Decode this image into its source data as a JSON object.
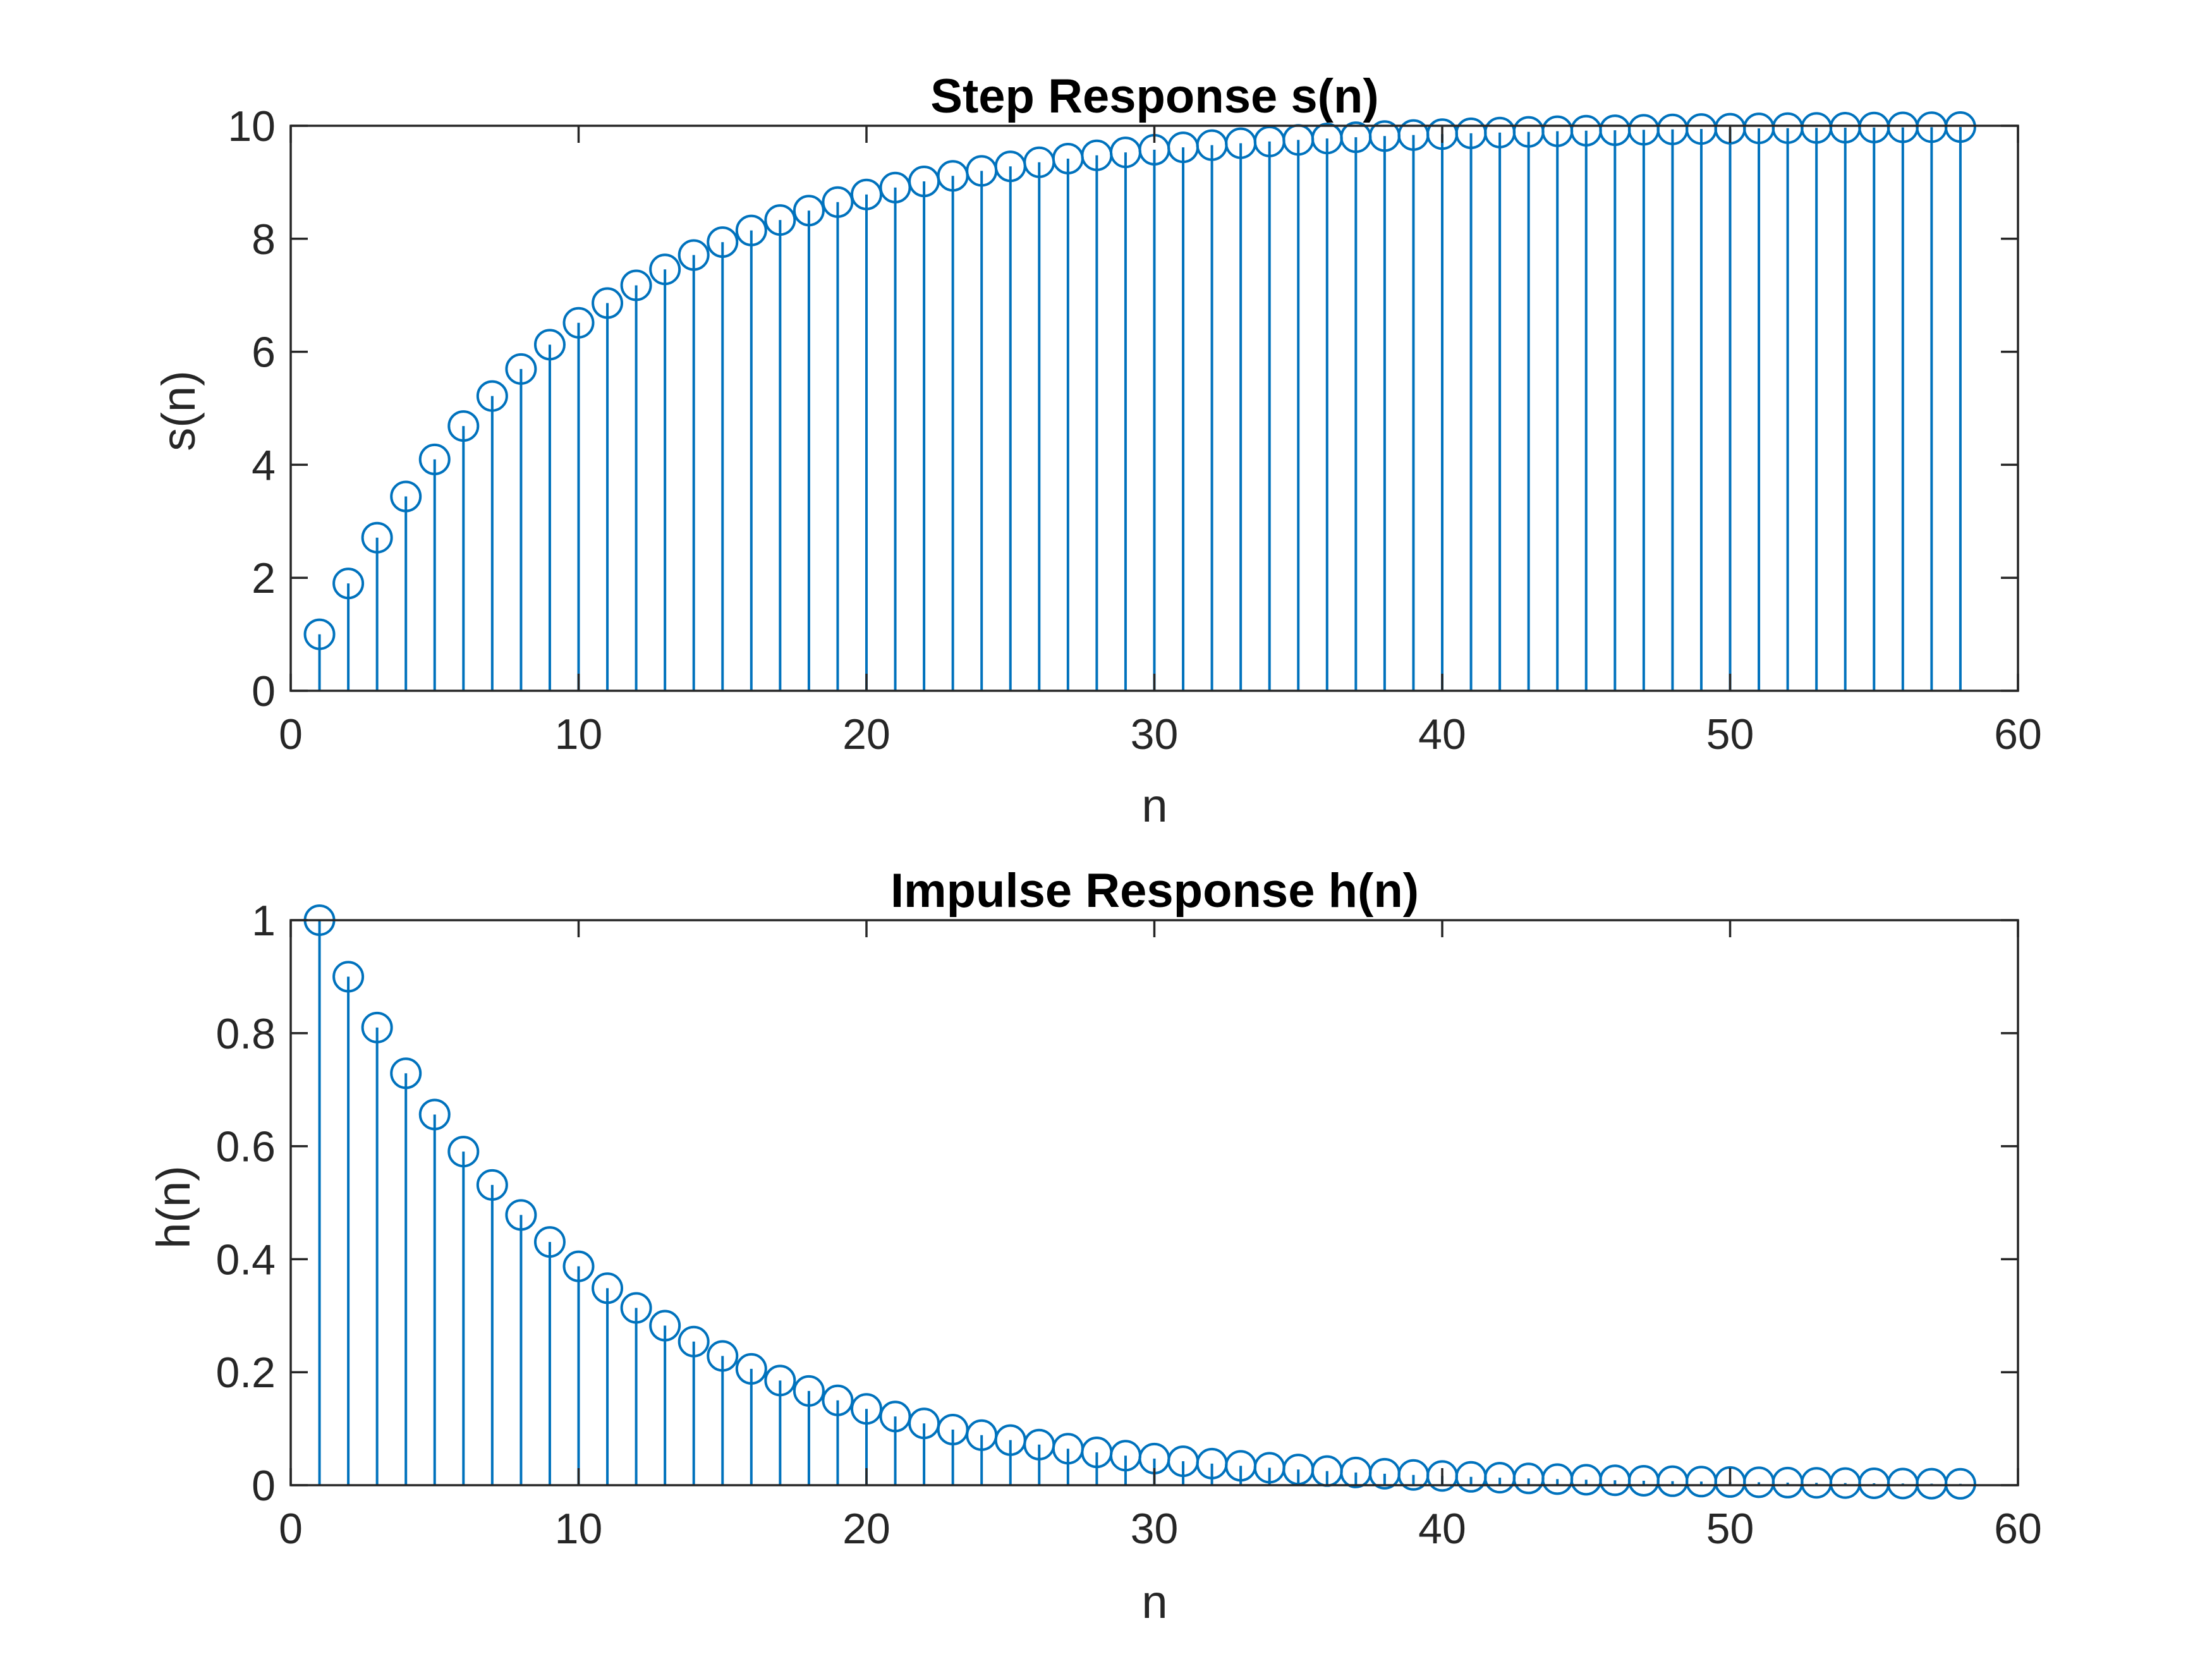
{
  "figure": {
    "background": "#ffffff",
    "axis_color": "#262626",
    "series_color": "#0072BD"
  },
  "chart_data": [
    {
      "type": "stem",
      "title": "Step Response s(n)",
      "xlabel": "n",
      "ylabel": "s(n)",
      "xlim": [
        0,
        60
      ],
      "ylim": [
        0,
        10
      ],
      "xticks": [
        0,
        10,
        20,
        30,
        40,
        50,
        60
      ],
      "yticks": [
        0,
        2,
        4,
        6,
        8,
        10
      ],
      "xtick_labels": [
        "0",
        "10",
        "20",
        "30",
        "40",
        "50",
        "60"
      ],
      "ytick_labels": [
        "0",
        "2",
        "4",
        "6",
        "8",
        "10"
      ],
      "grid": false,
      "marker": "circle",
      "x": [
        1,
        2,
        3,
        4,
        5,
        6,
        7,
        8,
        9,
        10,
        11,
        12,
        13,
        14,
        15,
        16,
        17,
        18,
        19,
        20,
        21,
        22,
        23,
        24,
        25,
        26,
        27,
        28,
        29,
        30,
        31,
        32,
        33,
        34,
        35,
        36,
        37,
        38,
        39,
        40,
        41,
        42,
        43,
        44,
        45,
        46,
        47,
        48,
        49,
        50,
        51,
        52,
        53,
        54,
        55,
        56,
        57,
        58
      ],
      "values": [
        1.0,
        1.9,
        2.71,
        3.439,
        4.095,
        4.686,
        5.217,
        5.695,
        6.126,
        6.513,
        6.862,
        7.176,
        7.458,
        7.712,
        7.941,
        8.147,
        8.332,
        8.499,
        8.649,
        8.784,
        8.906,
        9.015,
        9.114,
        9.202,
        9.282,
        9.354,
        9.419,
        9.477,
        9.529,
        9.576,
        9.618,
        9.657,
        9.691,
        9.722,
        9.75,
        9.775,
        9.797,
        9.818,
        9.836,
        9.852,
        9.867,
        9.88,
        9.892,
        9.903,
        9.913,
        9.921,
        9.929,
        9.936,
        9.943,
        9.948,
        9.954,
        9.958,
        9.962,
        9.966,
        9.969,
        9.972,
        9.975,
        9.977
      ]
    },
    {
      "type": "stem",
      "title": "Impulse Response h(n)",
      "xlabel": "n",
      "ylabel": "h(n)",
      "xlim": [
        0,
        60
      ],
      "ylim": [
        0,
        1
      ],
      "xticks": [
        0,
        10,
        20,
        30,
        40,
        50,
        60
      ],
      "yticks": [
        0,
        0.2,
        0.4,
        0.6,
        0.8,
        1
      ],
      "xtick_labels": [
        "0",
        "10",
        "20",
        "30",
        "40",
        "50",
        "60"
      ],
      "ytick_labels": [
        "0",
        "0.2",
        "0.4",
        "0.6",
        "0.8",
        "1"
      ],
      "grid": false,
      "marker": "circle",
      "x": [
        1,
        2,
        3,
        4,
        5,
        6,
        7,
        8,
        9,
        10,
        11,
        12,
        13,
        14,
        15,
        16,
        17,
        18,
        19,
        20,
        21,
        22,
        23,
        24,
        25,
        26,
        27,
        28,
        29,
        30,
        31,
        32,
        33,
        34,
        35,
        36,
        37,
        38,
        39,
        40,
        41,
        42,
        43,
        44,
        45,
        46,
        47,
        48,
        49,
        50,
        51,
        52,
        53,
        54,
        55,
        56,
        57,
        58
      ],
      "values": [
        1.0,
        0.9,
        0.81,
        0.729,
        0.6561,
        0.5905,
        0.5314,
        0.4783,
        0.4305,
        0.3874,
        0.3487,
        0.3138,
        0.2824,
        0.2542,
        0.2288,
        0.2059,
        0.1853,
        0.1668,
        0.1501,
        0.1351,
        0.1216,
        0.1094,
        0.0985,
        0.0886,
        0.0798,
        0.0718,
        0.0646,
        0.0581,
        0.0523,
        0.0471,
        0.0424,
        0.0382,
        0.0343,
        0.0309,
        0.0278,
        0.025,
        0.0225,
        0.0203,
        0.0182,
        0.0164,
        0.0148,
        0.0133,
        0.012,
        0.0108,
        0.0097,
        0.0087,
        0.0079,
        0.0071,
        0.0064,
        0.0057,
        0.0052,
        0.0046,
        0.0042,
        0.0038,
        0.0034,
        0.003,
        0.0027,
        0.0025
      ]
    }
  ]
}
